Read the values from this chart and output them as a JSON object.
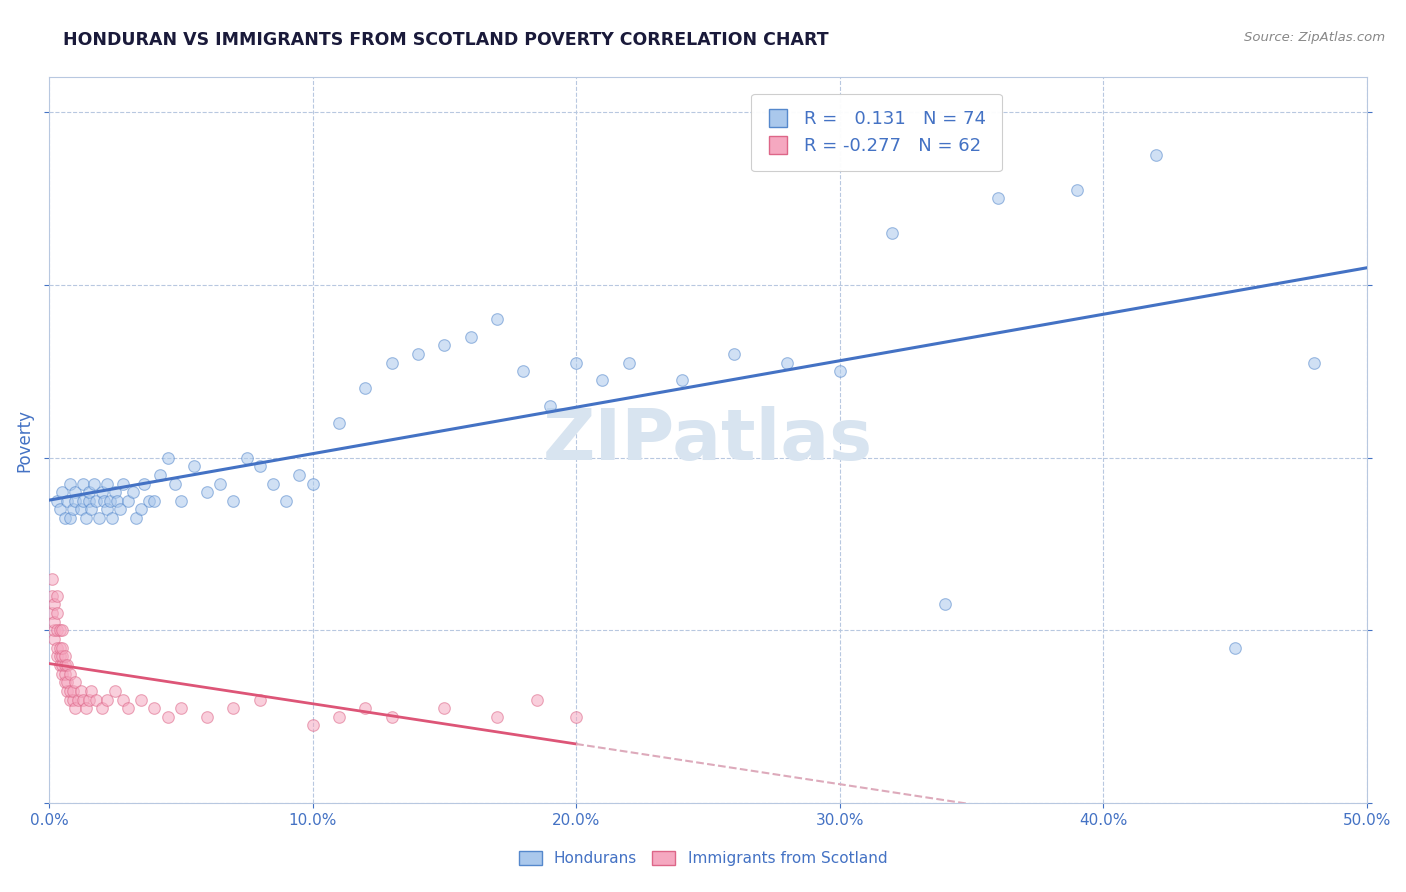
{
  "title": "HONDURAN VS IMMIGRANTS FROM SCOTLAND POVERTY CORRELATION CHART",
  "source": "Source: ZipAtlas.com",
  "ylabel": "Poverty",
  "watermark": "ZIPatlas",
  "xlim": [
    0.0,
    0.5
  ],
  "ylim": [
    0.0,
    0.42
  ],
  "xticks": [
    0.0,
    0.1,
    0.2,
    0.3,
    0.4,
    0.5
  ],
  "yticks": [
    0.0,
    0.1,
    0.2,
    0.3,
    0.4
  ],
  "legend_label1": "Hondurans",
  "legend_label2": "Immigrants from Scotland",
  "r1": 0.131,
  "n1": 74,
  "r2": -0.277,
  "n2": 62,
  "blue_scatter_x": [
    0.003,
    0.004,
    0.005,
    0.006,
    0.007,
    0.008,
    0.008,
    0.009,
    0.01,
    0.01,
    0.012,
    0.013,
    0.013,
    0.014,
    0.015,
    0.015,
    0.016,
    0.017,
    0.018,
    0.019,
    0.02,
    0.021,
    0.022,
    0.022,
    0.023,
    0.024,
    0.025,
    0.026,
    0.027,
    0.028,
    0.03,
    0.032,
    0.033,
    0.035,
    0.036,
    0.038,
    0.04,
    0.042,
    0.045,
    0.048,
    0.05,
    0.055,
    0.06,
    0.065,
    0.07,
    0.075,
    0.08,
    0.085,
    0.09,
    0.095,
    0.1,
    0.11,
    0.12,
    0.13,
    0.14,
    0.15,
    0.16,
    0.17,
    0.18,
    0.19,
    0.2,
    0.21,
    0.22,
    0.24,
    0.26,
    0.28,
    0.3,
    0.32,
    0.34,
    0.36,
    0.39,
    0.42,
    0.45,
    0.48
  ],
  "blue_scatter_y": [
    0.175,
    0.17,
    0.18,
    0.165,
    0.175,
    0.185,
    0.165,
    0.17,
    0.18,
    0.175,
    0.17,
    0.175,
    0.185,
    0.165,
    0.175,
    0.18,
    0.17,
    0.185,
    0.175,
    0.165,
    0.18,
    0.175,
    0.17,
    0.185,
    0.175,
    0.165,
    0.18,
    0.175,
    0.17,
    0.185,
    0.175,
    0.18,
    0.165,
    0.17,
    0.185,
    0.175,
    0.175,
    0.19,
    0.2,
    0.185,
    0.175,
    0.195,
    0.18,
    0.185,
    0.175,
    0.2,
    0.195,
    0.185,
    0.175,
    0.19,
    0.185,
    0.22,
    0.24,
    0.255,
    0.26,
    0.265,
    0.27,
    0.28,
    0.25,
    0.23,
    0.255,
    0.245,
    0.255,
    0.245,
    0.26,
    0.255,
    0.25,
    0.33,
    0.115,
    0.35,
    0.355,
    0.375,
    0.09,
    0.255
  ],
  "pink_scatter_x": [
    0.001,
    0.001,
    0.001,
    0.002,
    0.002,
    0.002,
    0.002,
    0.003,
    0.003,
    0.003,
    0.003,
    0.003,
    0.004,
    0.004,
    0.004,
    0.004,
    0.005,
    0.005,
    0.005,
    0.005,
    0.005,
    0.006,
    0.006,
    0.006,
    0.006,
    0.007,
    0.007,
    0.007,
    0.008,
    0.008,
    0.008,
    0.009,
    0.009,
    0.01,
    0.01,
    0.011,
    0.012,
    0.013,
    0.014,
    0.015,
    0.016,
    0.018,
    0.02,
    0.022,
    0.025,
    0.028,
    0.03,
    0.035,
    0.04,
    0.045,
    0.05,
    0.06,
    0.07,
    0.08,
    0.1,
    0.11,
    0.12,
    0.13,
    0.15,
    0.17,
    0.185,
    0.2
  ],
  "pink_scatter_y": [
    0.11,
    0.12,
    0.13,
    0.095,
    0.1,
    0.105,
    0.115,
    0.085,
    0.09,
    0.1,
    0.11,
    0.12,
    0.08,
    0.085,
    0.09,
    0.1,
    0.075,
    0.08,
    0.085,
    0.09,
    0.1,
    0.07,
    0.075,
    0.08,
    0.085,
    0.065,
    0.07,
    0.08,
    0.06,
    0.065,
    0.075,
    0.06,
    0.065,
    0.055,
    0.07,
    0.06,
    0.065,
    0.06,
    0.055,
    0.06,
    0.065,
    0.06,
    0.055,
    0.06,
    0.065,
    0.06,
    0.055,
    0.06,
    0.055,
    0.05,
    0.055,
    0.05,
    0.055,
    0.06,
    0.045,
    0.05,
    0.055,
    0.05,
    0.055,
    0.05,
    0.06,
    0.05
  ],
  "blue_color": "#aac8ec",
  "pink_color": "#f5a8c0",
  "blue_edge_color": "#5588cc",
  "pink_edge_color": "#dd6688",
  "blue_line_color": "#4472c4",
  "pink_line_color": "#dd5577",
  "pink_line_dash_color": "#ddaabb",
  "marker_size": 70,
  "alpha": 0.55,
  "title_color": "#1a1a3a",
  "tick_color": "#4472c4",
  "grid_color": "#b8c8e0",
  "watermark_color": "#d8e4f0",
  "background_color": "#ffffff",
  "pink_line_x_end": 0.35
}
